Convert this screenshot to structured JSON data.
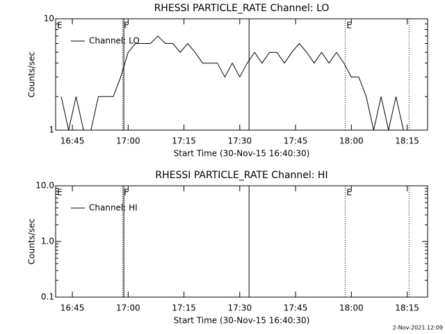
{
  "chart_data": [
    {
      "type": "line",
      "title": "RHESSI PARTICLE_RATE Channel: LO",
      "ylabel": "Counts/sec",
      "xlabel": "Start Time (30-Nov-15 16:40:30)",
      "log_y": true,
      "ylim": [
        1,
        10
      ],
      "yticks": [
        1,
        10
      ],
      "xlim": [
        "16:40:30",
        "18:20:30"
      ],
      "xticks": [
        "16:45",
        "17:00",
        "17:15",
        "17:30",
        "17:45",
        "18:00",
        "18:15"
      ],
      "x": [
        "16:42",
        "16:44",
        "16:46",
        "16:48",
        "16:50",
        "16:52",
        "16:54",
        "16:56",
        "16:58",
        "17:00",
        "17:02",
        "17:04",
        "17:06",
        "17:08",
        "17:10",
        "17:12",
        "17:14",
        "17:16",
        "17:18",
        "17:20",
        "17:22",
        "17:24",
        "17:26",
        "17:28",
        "17:30",
        "17:32",
        "17:34",
        "17:36",
        "17:38",
        "17:40",
        "17:42",
        "17:44",
        "17:46",
        "17:48",
        "17:50",
        "17:52",
        "17:54",
        "17:56",
        "17:58",
        "18:00",
        "18:02",
        "18:04",
        "18:06",
        "18:08",
        "18:10",
        "18:12",
        "18:14",
        "18:16"
      ],
      "series": [
        {
          "name": "Channel: LO",
          "color": "#000000",
          "values": [
            2,
            1,
            2,
            1,
            1,
            2,
            2,
            2,
            3,
            5,
            6,
            6,
            6,
            7,
            6,
            6,
            5,
            6,
            5,
            4,
            4,
            4,
            3,
            4,
            3,
            4,
            5,
            4,
            5,
            5,
            4,
            5,
            6,
            5,
            4,
            5,
            4,
            5,
            4,
            3,
            3,
            2,
            1,
            2,
            1,
            2,
            1,
            1
          ]
        }
      ],
      "markers": [
        {
          "x": "16:40:30",
          "label": "E"
        },
        {
          "x": "16:58:30",
          "label": "F",
          "style": "dotted"
        },
        {
          "x": "16:58:50",
          "style": "solid"
        },
        {
          "x": "17:32:30",
          "style": "solid"
        },
        {
          "x": "17:58:20",
          "label": "E",
          "style": "dotted"
        },
        {
          "x": "18:15:30",
          "style": "dotted"
        }
      ]
    },
    {
      "type": "line",
      "title": "RHESSI PARTICLE_RATE Channel: HI",
      "ylabel": "Counts/sec",
      "xlabel": "Start Time (30-Nov-15 16:40:30)",
      "log_y": true,
      "ylim": [
        0.1,
        10
      ],
      "yticks": [
        {
          "value": 0.1,
          "label": "0.1"
        },
        {
          "value": 1,
          "label": "1.0"
        },
        {
          "value": 10,
          "label": "10.0"
        }
      ],
      "xlim": [
        "16:40:30",
        "18:20:30"
      ],
      "xticks": [
        "16:45",
        "17:00",
        "17:15",
        "17:30",
        "17:45",
        "18:00",
        "18:15"
      ],
      "series": [
        {
          "name": "Channel: HI",
          "color": "#000000",
          "values": []
        }
      ],
      "markers": [
        {
          "x": "16:40:30",
          "label": "E"
        },
        {
          "x": "16:58:30",
          "label": "F",
          "style": "dotted"
        },
        {
          "x": "16:58:50",
          "style": "solid"
        },
        {
          "x": "17:32:30",
          "style": "solid"
        },
        {
          "x": "17:58:20",
          "label": "E",
          "style": "dotted"
        },
        {
          "x": "18:15:30",
          "style": "dotted"
        }
      ]
    }
  ],
  "footer": "2-Nov-2021 12:09"
}
